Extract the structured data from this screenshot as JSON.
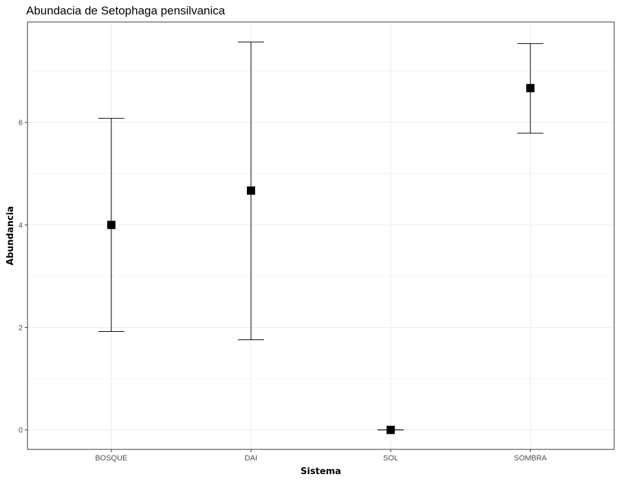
{
  "chart_data": {
    "type": "scatter",
    "title": "Abundacia de Setophaga pensilvanica",
    "xlabel": "Sistema",
    "ylabel": "Abundancia",
    "categories": [
      "BOSQUE",
      "DAI",
      "SOL",
      "SOMBRA"
    ],
    "values": [
      4.0,
      4.67,
      0.0,
      6.67
    ],
    "error_low": [
      1.92,
      1.76,
      0.0,
      5.79
    ],
    "error_high": [
      6.08,
      7.57,
      0.0,
      7.54
    ],
    "ylim": [
      -0.38,
      7.96
    ],
    "yticks": [
      0,
      2,
      4,
      6
    ],
    "grid": true,
    "marker": "square",
    "color": "#000000"
  }
}
